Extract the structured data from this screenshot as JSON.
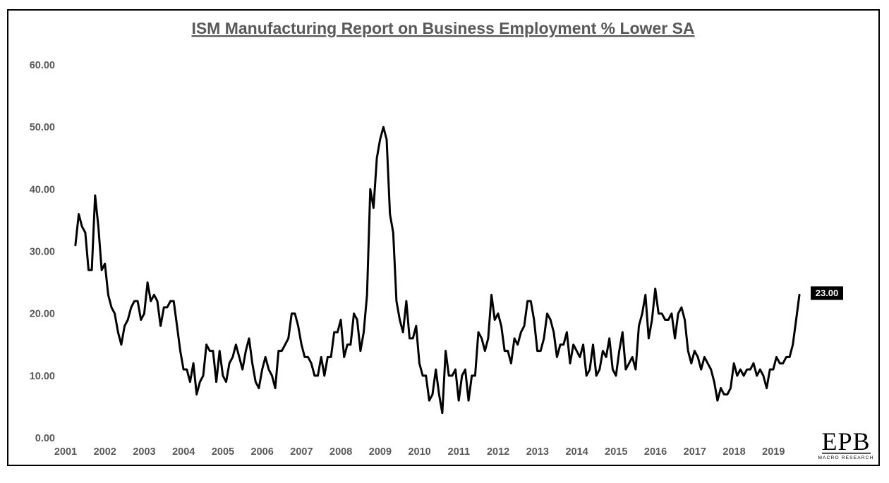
{
  "chart_data": {
    "type": "line",
    "title": "ISM Manufacturing Report on Business Employment % Lower SA",
    "xlabel": "",
    "ylabel": "",
    "ylim": [
      0,
      60
    ],
    "yticks": [
      "60.00",
      "50.00",
      "40.00",
      "30.00",
      "20.00",
      "10.00",
      "0.00"
    ],
    "xlim": [
      2001,
      2020
    ],
    "xticks": [
      "2001",
      "2002",
      "2003",
      "2004",
      "2005",
      "2006",
      "2007",
      "2008",
      "2009",
      "2010",
      "2011",
      "2012",
      "2013",
      "2014",
      "2015",
      "2016",
      "2017",
      "2018",
      "2019"
    ],
    "series": [
      {
        "name": "Employment % Lower SA",
        "color": "#000000",
        "start_year": 2001.25,
        "step_years": 0.0833,
        "values": [
          31,
          36,
          34,
          33,
          27,
          27,
          39,
          34,
          27,
          28,
          23,
          21,
          20,
          17,
          15,
          18,
          19,
          21,
          22,
          22,
          19,
          20,
          25,
          22,
          23,
          22,
          18,
          21,
          21,
          22,
          22,
          18,
          14,
          11,
          11,
          9,
          12,
          7,
          9,
          10,
          15,
          14,
          14,
          9,
          14,
          10,
          9,
          12,
          13,
          15,
          13,
          11,
          14,
          16,
          12,
          9,
          8,
          11,
          13,
          11,
          10,
          8,
          14,
          14,
          15,
          16,
          20,
          20,
          18,
          15,
          13,
          13,
          12,
          10,
          10,
          13,
          10,
          13,
          13,
          17,
          17,
          19,
          13,
          15,
          15,
          20,
          19,
          14,
          17,
          23,
          40,
          37,
          45,
          48,
          50,
          48,
          36,
          33,
          22,
          19,
          17,
          22,
          16,
          16,
          18,
          12,
          10,
          10,
          6,
          7,
          11,
          7,
          4,
          14,
          10,
          10,
          11,
          6,
          10,
          11,
          6,
          10,
          10,
          17,
          16,
          14,
          16,
          23,
          19,
          20,
          18,
          14,
          14,
          12,
          16,
          15,
          17,
          18,
          22,
          22,
          19,
          14,
          14,
          16,
          20,
          19,
          17,
          13,
          15,
          15,
          17,
          12,
          15,
          14,
          13,
          15,
          10,
          11,
          15,
          10,
          11,
          14,
          13,
          16,
          11,
          10,
          14,
          17,
          11,
          12,
          13,
          11,
          18,
          20,
          23,
          16,
          19,
          24,
          20,
          20,
          19,
          19,
          20,
          16,
          20,
          21,
          19,
          14,
          12,
          14,
          13,
          11,
          13,
          12,
          11,
          9,
          6,
          8,
          7,
          7,
          8,
          12,
          10,
          11,
          10,
          11,
          11,
          12,
          10,
          11,
          10,
          8,
          11,
          11,
          13,
          12,
          12,
          13,
          13,
          15,
          19,
          23
        ]
      }
    ],
    "last_value_label": "23.00"
  },
  "logo": {
    "main": "EPB",
    "sub": "MACRO RESEARCH"
  },
  "colors": {
    "line": "#000000",
    "text": "#595959",
    "label_bg": "#000000"
  }
}
